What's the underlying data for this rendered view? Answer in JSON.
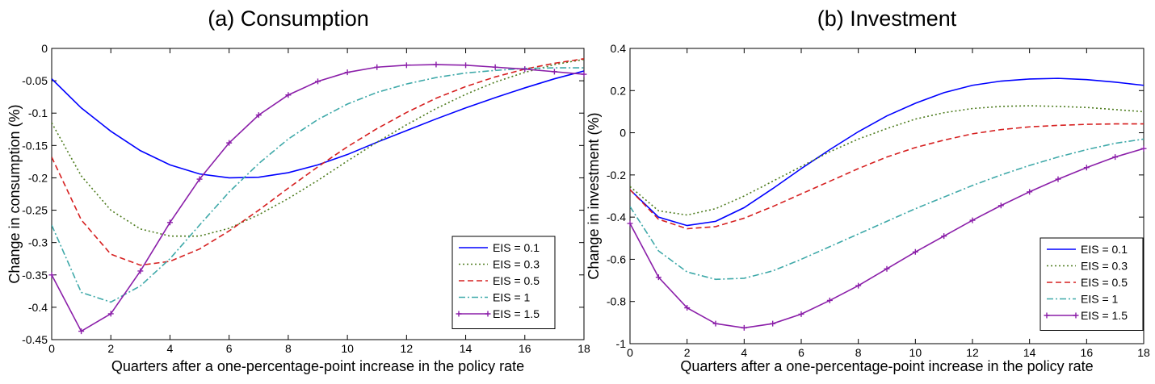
{
  "figure": {
    "panels": [
      {
        "title": "(a) Consumption"
      },
      {
        "title": "(b) Investment"
      }
    ]
  },
  "chart_data": [
    {
      "type": "line",
      "title": "(a) Consumption",
      "xlabel": "Quarters after a one-percentage-point increase in the policy rate",
      "ylabel": "Change in consumption (%)",
      "xlim": [
        0,
        18
      ],
      "ylim": [
        -0.45,
        0
      ],
      "xticks": [
        0,
        2,
        4,
        6,
        8,
        10,
        12,
        14,
        16,
        18
      ],
      "yticks": [
        0,
        -0.05,
        -0.1,
        -0.15,
        -0.2,
        -0.25,
        -0.3,
        -0.35,
        -0.4,
        -0.45
      ],
      "xtick_labels": [
        "0",
        "2",
        "4",
        "6",
        "8",
        "10",
        "12",
        "14",
        "16",
        "18"
      ],
      "ytick_labels": [
        "0",
        "-0.05",
        "-0.1",
        "-0.15",
        "-0.2",
        "-0.25",
        "-0.3",
        "-0.35",
        "-0.4",
        "-0.45"
      ],
      "grid": false,
      "legend_position": "bottom-right",
      "x": [
        0,
        1,
        2,
        3,
        4,
        5,
        6,
        7,
        8,
        9,
        10,
        11,
        12,
        13,
        14,
        15,
        16,
        17,
        18
      ],
      "series": [
        {
          "name": "EIS = 0.1",
          "color": "#0000ff",
          "dash": "solid",
          "marker": "none",
          "values": [
            -0.047,
            -0.092,
            -0.128,
            -0.158,
            -0.18,
            -0.194,
            -0.2,
            -0.199,
            -0.192,
            -0.18,
            -0.164,
            -0.145,
            -0.127,
            -0.109,
            -0.092,
            -0.076,
            -0.061,
            -0.047,
            -0.035
          ]
        },
        {
          "name": "EIS = 0.3",
          "color": "#4e7c1f",
          "dash": "dotted",
          "marker": "none",
          "values": [
            -0.115,
            -0.197,
            -0.25,
            -0.279,
            -0.29,
            -0.29,
            -0.278,
            -0.257,
            -0.232,
            -0.204,
            -0.174,
            -0.145,
            -0.118,
            -0.093,
            -0.071,
            -0.052,
            -0.037,
            -0.025,
            -0.017
          ]
        },
        {
          "name": "EIS = 0.5",
          "color": "#d62020",
          "dash": "dashed",
          "marker": "none",
          "values": [
            -0.168,
            -0.265,
            -0.318,
            -0.335,
            -0.329,
            -0.31,
            -0.282,
            -0.25,
            -0.216,
            -0.183,
            -0.152,
            -0.124,
            -0.099,
            -0.077,
            -0.059,
            -0.044,
            -0.032,
            -0.023,
            -0.016
          ]
        },
        {
          "name": "EIS = 1",
          "color": "#3fa9a9",
          "dash": "dashdot",
          "marker": "none",
          "values": [
            -0.273,
            -0.377,
            -0.392,
            -0.367,
            -0.325,
            -0.273,
            -0.222,
            -0.178,
            -0.14,
            -0.11,
            -0.086,
            -0.068,
            -0.055,
            -0.045,
            -0.038,
            -0.034,
            -0.031,
            -0.03,
            -0.03
          ]
        },
        {
          "name": "EIS = 1.5",
          "color": "#8b1fa9",
          "dash": "solid",
          "marker": "plus",
          "values": [
            -0.35,
            -0.437,
            -0.41,
            -0.344,
            -0.269,
            -0.202,
            -0.146,
            -0.103,
            -0.072,
            -0.051,
            -0.037,
            -0.029,
            -0.026,
            -0.025,
            -0.026,
            -0.029,
            -0.032,
            -0.036,
            -0.04
          ]
        }
      ]
    },
    {
      "type": "line",
      "title": "(b) Investment",
      "xlabel": "Quarters after a one-percentage-point increase in the policy rate",
      "ylabel": "Change in investment (%)",
      "xlim": [
        0,
        18
      ],
      "ylim": [
        -1,
        0.4
      ],
      "xticks": [
        0,
        2,
        4,
        6,
        8,
        10,
        12,
        14,
        16,
        18
      ],
      "yticks": [
        0.4,
        0.2,
        0,
        -0.2,
        -0.4,
        -0.6,
        -0.8,
        -1
      ],
      "xtick_labels": [
        "0",
        "2",
        "4",
        "6",
        "8",
        "10",
        "12",
        "14",
        "16",
        "18"
      ],
      "ytick_labels": [
        "0.4",
        "0.2",
        "0",
        "-0.2",
        "-0.4",
        "-0.6",
        "-0.8",
        "-1"
      ],
      "grid": false,
      "legend_position": "bottom-right",
      "x": [
        0,
        1,
        2,
        3,
        4,
        5,
        6,
        7,
        8,
        9,
        10,
        11,
        12,
        13,
        14,
        15,
        16,
        17,
        18
      ],
      "series": [
        {
          "name": "EIS = 0.1",
          "color": "#0000ff",
          "dash": "solid",
          "marker": "none",
          "values": [
            -0.27,
            -0.4,
            -0.44,
            -0.42,
            -0.355,
            -0.265,
            -0.17,
            -0.08,
            0.005,
            0.08,
            0.14,
            0.19,
            0.225,
            0.245,
            0.255,
            0.258,
            0.252,
            0.24,
            0.225
          ]
        },
        {
          "name": "EIS = 0.3",
          "color": "#4e7c1f",
          "dash": "dotted",
          "marker": "none",
          "values": [
            -0.255,
            -0.37,
            -0.39,
            -0.36,
            -0.3,
            -0.23,
            -0.16,
            -0.09,
            -0.03,
            0.02,
            0.065,
            0.095,
            0.115,
            0.125,
            0.128,
            0.125,
            0.12,
            0.11,
            0.1
          ]
        },
        {
          "name": "EIS = 0.5",
          "color": "#d62020",
          "dash": "dashed",
          "marker": "none",
          "values": [
            -0.27,
            -0.41,
            -0.455,
            -0.445,
            -0.405,
            -0.35,
            -0.29,
            -0.23,
            -0.17,
            -0.115,
            -0.07,
            -0.035,
            -0.005,
            0.015,
            0.028,
            0.035,
            0.04,
            0.042,
            0.042
          ]
        },
        {
          "name": "EIS = 1",
          "color": "#3fa9a9",
          "dash": "dashdot",
          "marker": "none",
          "values": [
            -0.35,
            -0.56,
            -0.66,
            -0.695,
            -0.69,
            -0.655,
            -0.6,
            -0.54,
            -0.48,
            -0.42,
            -0.36,
            -0.305,
            -0.25,
            -0.2,
            -0.155,
            -0.115,
            -0.08,
            -0.05,
            -0.03
          ]
        },
        {
          "name": "EIS = 1.5",
          "color": "#8b1fa9",
          "dash": "solid",
          "marker": "plus",
          "values": [
            -0.43,
            -0.685,
            -0.83,
            -0.905,
            -0.925,
            -0.905,
            -0.86,
            -0.795,
            -0.725,
            -0.645,
            -0.565,
            -0.49,
            -0.415,
            -0.345,
            -0.28,
            -0.22,
            -0.165,
            -0.115,
            -0.075
          ]
        }
      ]
    }
  ]
}
